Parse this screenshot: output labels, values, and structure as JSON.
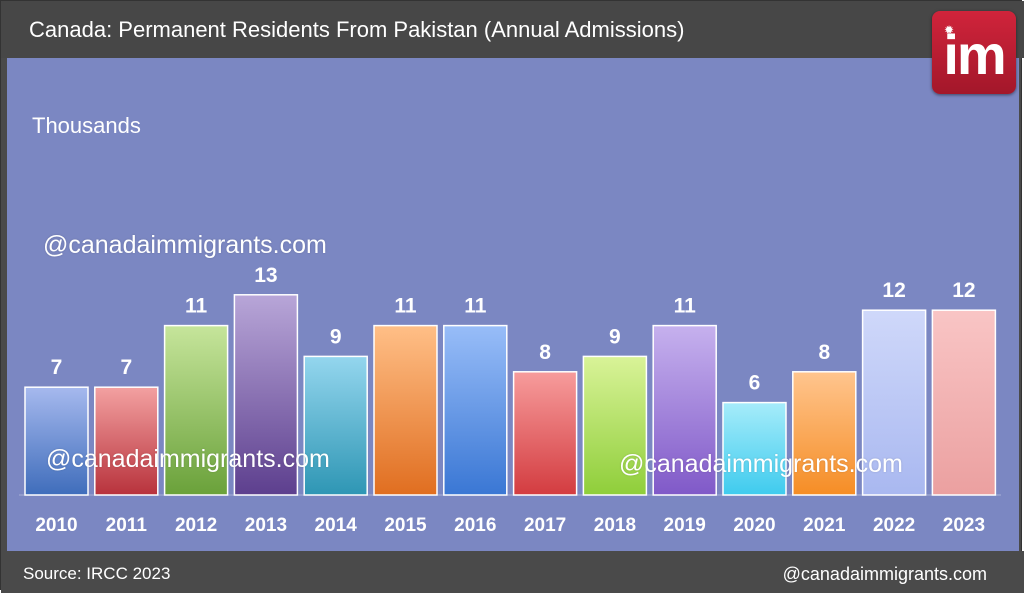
{
  "header": {
    "title": "Canada: Permanent Residents From Pakistan (Annual Admissions)"
  },
  "logo": {
    "text": "im",
    "brand_color": "#c41e33"
  },
  "watermarks": {
    "top": "@canadaimmigrants.com",
    "bottom_left": "@canadaimmigrants.com",
    "bottom_right": "@canadaimmigrants.com"
  },
  "footer": {
    "source": "Source: IRCC 2023",
    "brand": "@canadaimmigrants.com"
  },
  "chart_data": {
    "type": "bar",
    "title": "Canada: Permanent Residents From Pakistan (Annual Admissions)",
    "ylabel": "Thousands",
    "xlabel": "",
    "categories": [
      "2010",
      "2011",
      "2012",
      "2013",
      "2014",
      "2015",
      "2016",
      "2017",
      "2018",
      "2019",
      "2020",
      "2021",
      "2022",
      "2023"
    ],
    "values": [
      7,
      7,
      11,
      13,
      9,
      11,
      11,
      8,
      9,
      11,
      6,
      8,
      12,
      12
    ],
    "ylim": [
      0,
      20
    ],
    "grid": false,
    "bar_colors": [
      [
        "#a6b9ee",
        "#3f6dbb"
      ],
      [
        "#f3a1a1",
        "#b8323c"
      ],
      [
        "#c6e59b",
        "#6aa13a"
      ],
      [
        "#b8a6d8",
        "#5d3f8e"
      ],
      [
        "#94d6ee",
        "#2e96b4"
      ],
      [
        "#ffbf87",
        "#e06e20"
      ],
      [
        "#98bdf8",
        "#3a77d4"
      ],
      [
        "#f79c9c",
        "#d33c40"
      ],
      [
        "#d9f398",
        "#8fce3a"
      ],
      [
        "#c6b1ee",
        "#8059c8"
      ],
      [
        "#a6ecfa",
        "#3fcbee"
      ],
      [
        "#ffc58e",
        "#f58d25"
      ],
      [
        "#cfd8fa",
        "#a9b8f0"
      ],
      [
        "#f9c5c5",
        "#eba0a0"
      ]
    ]
  }
}
